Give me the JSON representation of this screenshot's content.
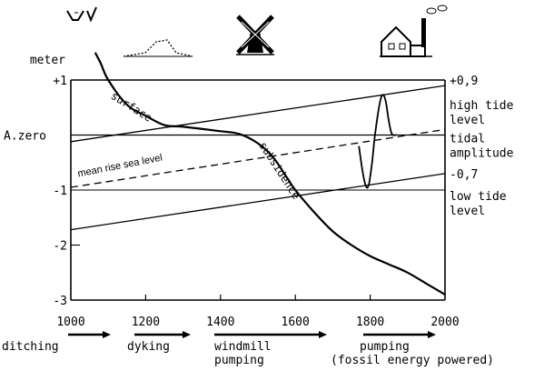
{
  "chart_data": {
    "type": "line",
    "x_range": [
      1000,
      2000
    ],
    "y_range": [
      -3,
      1
    ],
    "x_ticks": [
      "1000",
      "1200",
      "1400",
      "1600",
      "1800",
      "2000"
    ],
    "left_axis": {
      "unit_label": "meter",
      "tick_labels": [
        "+1",
        "A.zero",
        "-1",
        "-2",
        "-3"
      ]
    },
    "right_axis": {
      "high_value": "+0,9",
      "low_value": "-0,7",
      "labels": {
        "high_tide": [
          "high tide",
          "level"
        ],
        "tidal": [
          "tidal",
          "amplitude"
        ],
        "low_tide": [
          "low tide",
          "level"
        ]
      }
    },
    "series": [
      {
        "name": "surface",
        "label_text": "surface",
        "style": "solid-thick",
        "points": [
          [
            1065,
            1.5
          ],
          [
            1080,
            1.3
          ],
          [
            1100,
            1.0
          ],
          [
            1150,
            0.55
          ],
          [
            1200,
            0.35
          ],
          [
            1250,
            0.18
          ],
          [
            1300,
            0.15
          ],
          [
            1400,
            0.07
          ],
          [
            1450,
            0.02
          ],
          [
            1500,
            -0.15
          ],
          [
            1540,
            -0.4
          ],
          [
            1580,
            -0.8
          ],
          [
            1600,
            -1.0
          ],
          [
            1650,
            -1.4
          ],
          [
            1700,
            -1.75
          ],
          [
            1750,
            -2.0
          ],
          [
            1800,
            -2.2
          ],
          [
            1850,
            -2.35
          ],
          [
            1900,
            -2.5
          ],
          [
            1950,
            -2.7
          ],
          [
            2000,
            -2.9
          ]
        ]
      },
      {
        "name": "subsidence",
        "label_text": "subsidence",
        "style": "label-only"
      },
      {
        "name": "mean rise sea level",
        "label_text": "mean rise sea level",
        "style": "dashed",
        "points": [
          [
            1000,
            -0.95
          ],
          [
            2000,
            0.1
          ]
        ]
      },
      {
        "name": "high tide level",
        "style": "solid",
        "points": [
          [
            1000,
            -0.12
          ],
          [
            2000,
            0.9
          ]
        ]
      },
      {
        "name": "low tide level",
        "style": "solid",
        "points": [
          [
            1000,
            -1.72
          ],
          [
            2000,
            -0.7
          ]
        ]
      },
      {
        "name": "tidal curve",
        "style": "solid",
        "points": [
          [
            1770,
            -0.2
          ],
          [
            1775,
            -0.45
          ],
          [
            1782,
            -0.75
          ],
          [
            1790,
            -0.95
          ],
          [
            1797,
            -0.88
          ],
          [
            1805,
            -0.5
          ],
          [
            1812,
            -0.05
          ],
          [
            1820,
            0.35
          ],
          [
            1828,
            0.65
          ],
          [
            1835,
            0.73
          ],
          [
            1842,
            0.6
          ],
          [
            1850,
            0.25
          ],
          [
            1858,
            0.02
          ],
          [
            1870,
            0.0
          ]
        ]
      },
      {
        "name": "A.zero",
        "style": "solid-ref",
        "points": [
          [
            1000,
            0.0
          ],
          [
            2000,
            0.0
          ]
        ]
      }
    ],
    "stages": [
      {
        "label": "ditching",
        "icon": "ditch-icon",
        "year_start": 1000,
        "year_end": 1120
      },
      {
        "label": "dyking",
        "icon": "dike-icon",
        "year_start": 1190,
        "year_end": 1330
      },
      {
        "label": "windmill\npumping",
        "icon": "windmill-icon",
        "year_start": 1390,
        "year_end": 1720
      },
      {
        "label": "pumping\n(fossil energy powered)",
        "icon": "pumping-station-icon",
        "year_start": 1790,
        "year_end": 2000
      }
    ]
  }
}
